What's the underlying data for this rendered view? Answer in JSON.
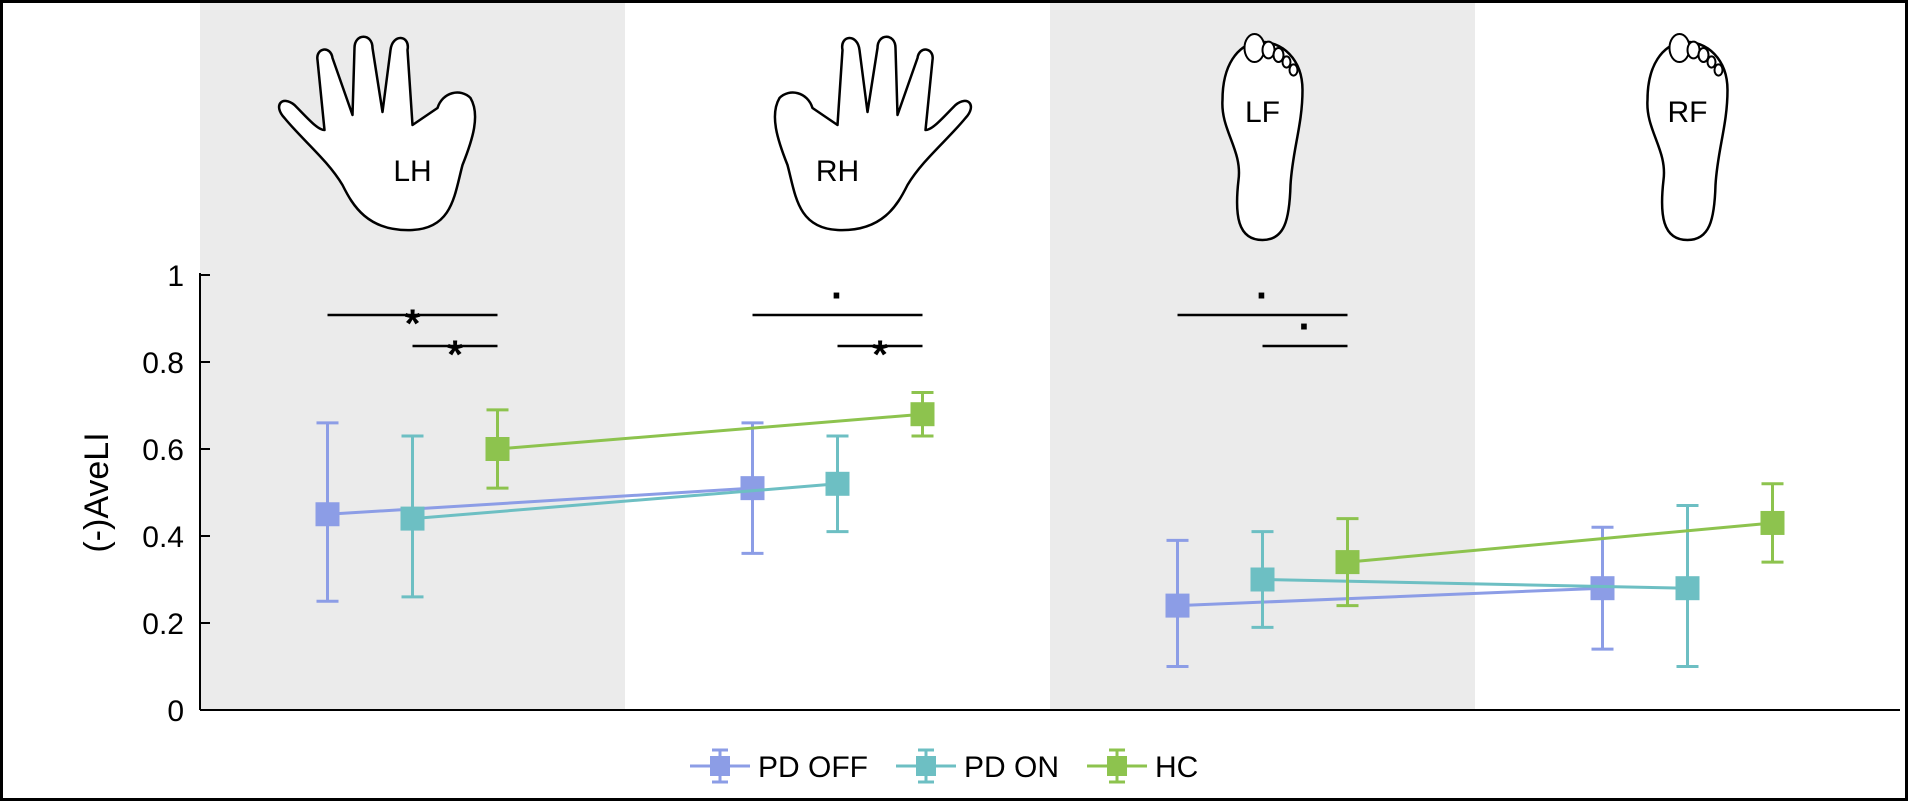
{
  "chart_data": {
    "type": "line",
    "xlabel": "",
    "ylabel": "(-)AveLI",
    "ylim": [
      0,
      1
    ],
    "yticks": [
      "0",
      "0.2",
      "0.4",
      "0.6",
      "0.8",
      "1"
    ],
    "grid": false,
    "legend_position": "bottom",
    "categories": [
      "LH",
      "RH",
      "LF",
      "RF"
    ],
    "series": [
      {
        "name": "PD OFF",
        "color": "#8c9de6",
        "values": [
          0.45,
          0.51,
          0.24,
          0.28
        ],
        "error_low": [
          0.25,
          0.36,
          0.1,
          0.14
        ],
        "error_high": [
          0.66,
          0.66,
          0.39,
          0.42
        ]
      },
      {
        "name": "PD ON",
        "color": "#6dbfc3",
        "values": [
          0.44,
          0.52,
          0.3,
          0.28
        ],
        "error_low": [
          0.26,
          0.41,
          0.19,
          0.1
        ],
        "error_high": [
          0.63,
          0.63,
          0.41,
          0.47
        ]
      },
      {
        "name": "HC",
        "color": "#8dc34e",
        "values": [
          0.6,
          0.68,
          0.34,
          0.43
        ],
        "error_low": [
          0.51,
          0.63,
          0.24,
          0.34
        ],
        "error_high": [
          0.69,
          0.73,
          0.44,
          0.52
        ]
      }
    ],
    "significance": [
      {
        "category": "LH",
        "from": "PD OFF",
        "to": "HC",
        "label": "*",
        "level": 1
      },
      {
        "category": "LH",
        "from": "PD ON",
        "to": "HC",
        "label": "*",
        "level": 2
      },
      {
        "category": "RH",
        "from": "PD OFF",
        "to": "HC",
        "label": "·",
        "level": 1
      },
      {
        "category": "RH",
        "from": "PD ON",
        "to": "HC",
        "label": "*",
        "level": 2
      },
      {
        "category": "LF",
        "from": "PD OFF",
        "to": "HC",
        "label": "·",
        "level": 1
      },
      {
        "category": "LF",
        "from": "PD ON",
        "to": "HC",
        "label": "·",
        "level": 2
      }
    ],
    "limb_icons": [
      {
        "category": "LH",
        "icon": "left-hand-icon"
      },
      {
        "category": "RH",
        "icon": "right-hand-icon"
      },
      {
        "category": "LF",
        "icon": "left-foot-icon"
      },
      {
        "category": "RF",
        "icon": "right-foot-icon"
      }
    ],
    "shaded_categories": [
      "LH",
      "LF"
    ],
    "shade_color": "#ebebeb"
  }
}
